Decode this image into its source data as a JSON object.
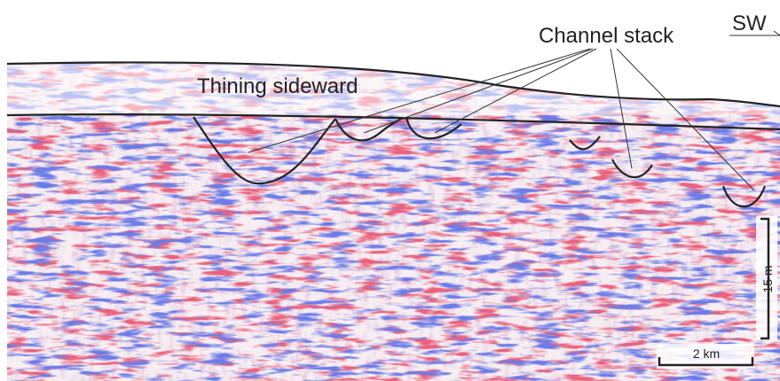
{
  "annotations": {
    "channel_label": "Channel stack",
    "thinning_label": "Thining sideward",
    "direction": "SW"
  },
  "scale": {
    "vertical": "15 m",
    "horizontal": "2 km"
  }
}
